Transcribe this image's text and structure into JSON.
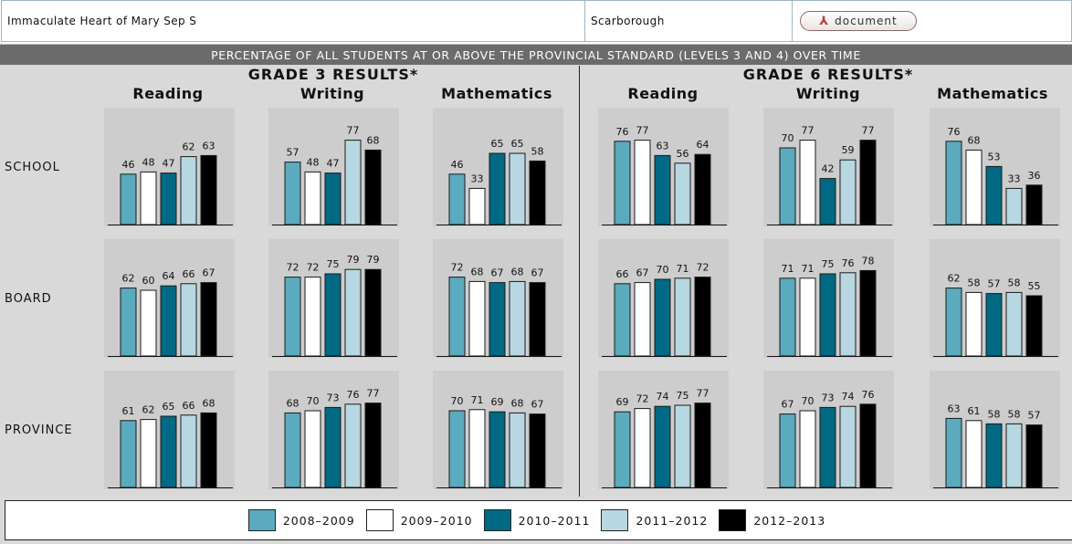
{
  "header": {
    "school_name": "Immaculate Heart of Mary Sep S",
    "city": "Scarborough",
    "document_label": "document",
    "document_icon": "pdf-icon"
  },
  "banner": "PERCENTAGE OF ALL STUDENTS AT OR ABOVE THE PROVINCIAL STANDARD (LEVELS 3 AND 4) OVER TIME",
  "grades": [
    {
      "title": "GRADE 3 RESULTS*",
      "subjects": [
        "Reading",
        "Writing",
        "Mathematics"
      ]
    },
    {
      "title": "GRADE 6 RESULTS*",
      "subjects": [
        "Reading",
        "Writing",
        "Mathematics"
      ]
    }
  ],
  "rows": [
    "SCHOOL",
    "BOARD",
    "PROVINCE"
  ],
  "legend": [
    {
      "label": "2008–2009",
      "color": "#5aabbd"
    },
    {
      "label": "2009–2010",
      "color": "#ffffff"
    },
    {
      "label": "2010–2011",
      "color": "#006a84"
    },
    {
      "label": "2011–2012",
      "color": "#b7d8e2"
    },
    {
      "label": "2012–2013",
      "color": "#000000"
    }
  ],
  "chart_data": {
    "type": "bar",
    "ylim": [
      0,
      100
    ],
    "series_names": [
      "2008–2009",
      "2009–2010",
      "2010–2011",
      "2011–2012",
      "2012–2013"
    ],
    "panels": [
      {
        "grade": "GRADE 3 RESULTS*",
        "subject": "Reading",
        "row": "SCHOOL",
        "values": [
          46,
          48,
          47,
          62,
          63
        ]
      },
      {
        "grade": "GRADE 3 RESULTS*",
        "subject": "Writing",
        "row": "SCHOOL",
        "values": [
          57,
          48,
          47,
          77,
          68
        ]
      },
      {
        "grade": "GRADE 3 RESULTS*",
        "subject": "Mathematics",
        "row": "SCHOOL",
        "values": [
          46,
          33,
          65,
          65,
          58
        ]
      },
      {
        "grade": "GRADE 6 RESULTS*",
        "subject": "Reading",
        "row": "SCHOOL",
        "values": [
          76,
          77,
          63,
          56,
          64
        ]
      },
      {
        "grade": "GRADE 6 RESULTS*",
        "subject": "Writing",
        "row": "SCHOOL",
        "values": [
          70,
          77,
          42,
          59,
          77
        ]
      },
      {
        "grade": "GRADE 6 RESULTS*",
        "subject": "Mathematics",
        "row": "SCHOOL",
        "values": [
          76,
          68,
          53,
          33,
          36
        ]
      },
      {
        "grade": "GRADE 3 RESULTS*",
        "subject": "Reading",
        "row": "BOARD",
        "values": [
          62,
          60,
          64,
          66,
          67
        ]
      },
      {
        "grade": "GRADE 3 RESULTS*",
        "subject": "Writing",
        "row": "BOARD",
        "values": [
          72,
          72,
          75,
          79,
          79
        ]
      },
      {
        "grade": "GRADE 3 RESULTS*",
        "subject": "Mathematics",
        "row": "BOARD",
        "values": [
          72,
          68,
          67,
          68,
          67
        ]
      },
      {
        "grade": "GRADE 6 RESULTS*",
        "subject": "Reading",
        "row": "BOARD",
        "values": [
          66,
          67,
          70,
          71,
          72
        ]
      },
      {
        "grade": "GRADE 6 RESULTS*",
        "subject": "Writing",
        "row": "BOARD",
        "values": [
          71,
          71,
          75,
          76,
          78
        ]
      },
      {
        "grade": "GRADE 6 RESULTS*",
        "subject": "Mathematics",
        "row": "BOARD",
        "values": [
          62,
          58,
          57,
          58,
          55
        ]
      },
      {
        "grade": "GRADE 3 RESULTS*",
        "subject": "Reading",
        "row": "PROVINCE",
        "values": [
          61,
          62,
          65,
          66,
          68
        ]
      },
      {
        "grade": "GRADE 3 RESULTS*",
        "subject": "Writing",
        "row": "PROVINCE",
        "values": [
          68,
          70,
          73,
          76,
          77
        ]
      },
      {
        "grade": "GRADE 3 RESULTS*",
        "subject": "Mathematics",
        "row": "PROVINCE",
        "values": [
          70,
          71,
          69,
          68,
          67
        ]
      },
      {
        "grade": "GRADE 6 RESULTS*",
        "subject": "Reading",
        "row": "PROVINCE",
        "values": [
          69,
          72,
          74,
          75,
          77
        ]
      },
      {
        "grade": "GRADE 6 RESULTS*",
        "subject": "Writing",
        "row": "PROVINCE",
        "values": [
          67,
          70,
          73,
          74,
          76
        ]
      },
      {
        "grade": "GRADE 6 RESULTS*",
        "subject": "Mathematics",
        "row": "PROVINCE",
        "values": [
          63,
          61,
          58,
          58,
          57
        ]
      }
    ]
  }
}
